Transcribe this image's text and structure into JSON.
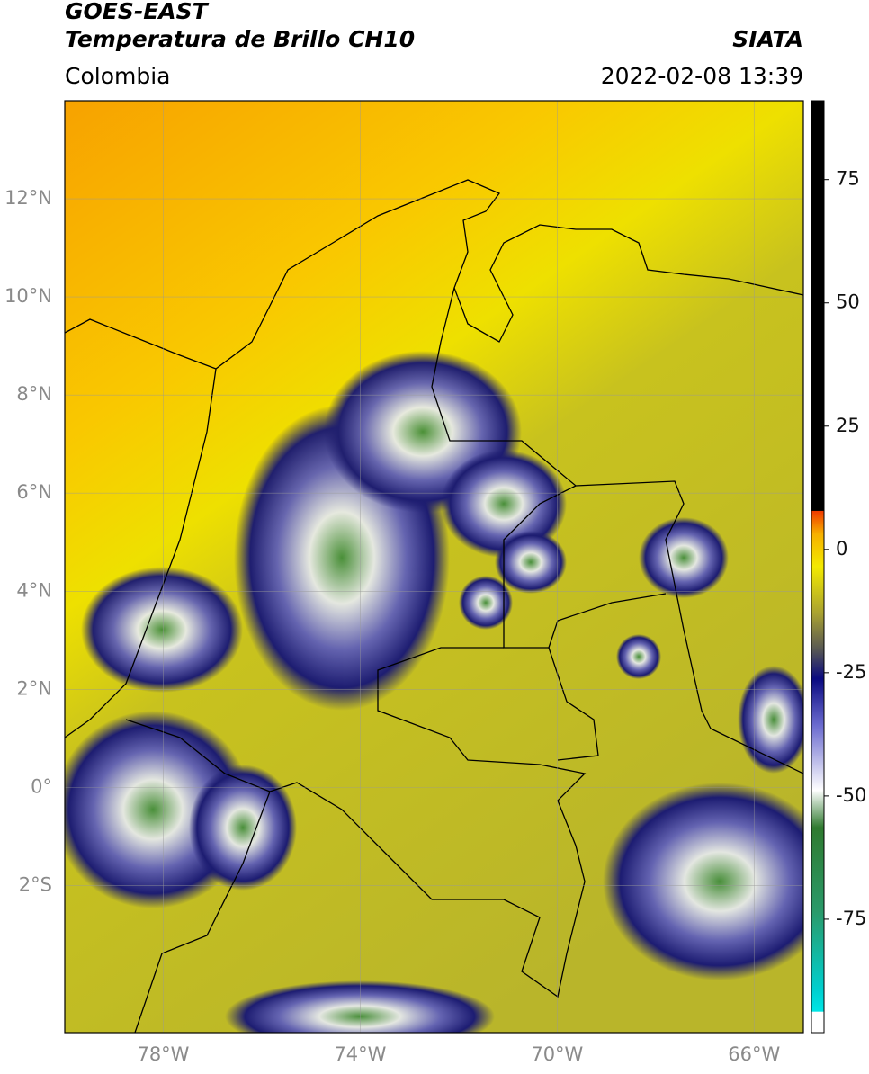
{
  "header": {
    "title": "GOES-EAST",
    "subtitle": "Temperatura de Brillo CH10",
    "source": "SIATA",
    "region": "Colombia",
    "datetime": "2022-02-08 13:39"
  },
  "map": {
    "lonlim": [
      -80,
      -65
    ],
    "latlim": [
      -5,
      14
    ],
    "grid": true,
    "lonticks": [
      {
        "value": -78,
        "label": "78°W"
      },
      {
        "value": -74,
        "label": "74°W"
      },
      {
        "value": -70,
        "label": "70°W"
      },
      {
        "value": -66,
        "label": "66°W"
      }
    ],
    "latticks": [
      {
        "value": 12,
        "label": "12°N"
      },
      {
        "value": 10,
        "label": "10°N"
      },
      {
        "value": 8,
        "label": "8°N"
      },
      {
        "value": 6,
        "label": "6°N"
      },
      {
        "value": 4,
        "label": "4°N"
      },
      {
        "value": 2,
        "label": "2°N"
      },
      {
        "value": 0,
        "label": "0°"
      },
      {
        "value": -2,
        "label": "2°S"
      }
    ]
  },
  "colorbar": {
    "lim": [
      -98,
      91
    ],
    "ticks": [
      75,
      50,
      25,
      0,
      -25,
      -50,
      -75
    ]
  }
}
